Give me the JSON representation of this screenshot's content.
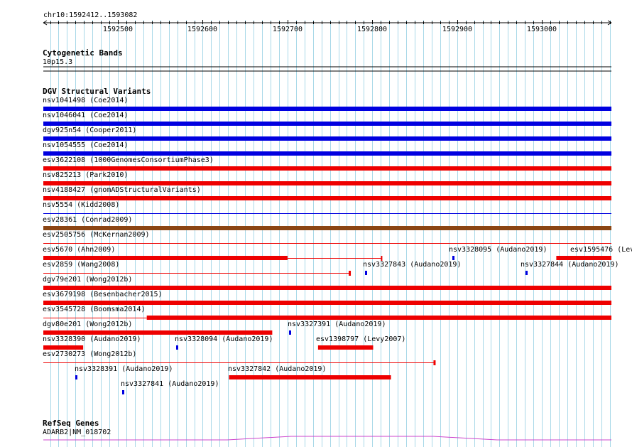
{
  "ruler": {
    "region": "chr10:1592412..1593082",
    "start": 1592412,
    "end": 1593082,
    "ticks": [
      "1592500",
      "1592600",
      "1592700",
      "1592800",
      "1592900",
      "1593000"
    ]
  },
  "tracks": {
    "cytogenetic": {
      "title": "Cytogenetic Bands",
      "band": "10p15.3"
    },
    "dgv": {
      "title": "DGV Structural Variants"
    },
    "refseq": {
      "title": "RefSeq Genes",
      "gene": "ADARB2|NM_018702"
    }
  },
  "colors": {
    "blue": "#0000e0",
    "red": "#ee0000",
    "brown": "#8b4513",
    "grid": "#a8d8e8",
    "gene": "#cc44cc"
  },
  "variants": [
    {
      "label": "nsv1041498 (Coe2014)",
      "start": 1592412,
      "end": 1593082,
      "color": "blue",
      "style": "thick"
    },
    {
      "label": "nsv1046041 (Coe2014)",
      "start": 1592412,
      "end": 1593082,
      "color": "blue",
      "style": "thick"
    },
    {
      "label": "dgv925n54 (Cooper2011)",
      "start": 1592412,
      "end": 1593082,
      "color": "blue",
      "style": "thick"
    },
    {
      "label": "nsv1054555 (Coe2014)",
      "start": 1592412,
      "end": 1593082,
      "color": "blue",
      "style": "thick"
    },
    {
      "label": "esv3622108 (1000GenomesConsortiumPhase3)",
      "start": 1592412,
      "end": 1593082,
      "color": "red",
      "style": "thick"
    },
    {
      "label": "nsv825213 (Park2010)",
      "start": 1592412,
      "end": 1593082,
      "color": "red",
      "style": "thick"
    },
    {
      "label": "nsv4188427 (gnomADStructuralVariants)",
      "start": 1592412,
      "end": 1593082,
      "color": "red",
      "style": "thick"
    },
    {
      "label": "nsv5554 (Kidd2008)",
      "start": 1592412,
      "end": 1593082,
      "color": "blue",
      "style": "thin"
    },
    {
      "label": "esv28361 (Conrad2009)",
      "start": 1592412,
      "end": 1593082,
      "color": "brown",
      "style": "thick"
    },
    {
      "label": "esv2505756 (McKernan2009)",
      "start": 1592412,
      "end": 1593082,
      "color": "red",
      "style": "thin"
    },
    {
      "label": "esv5670 (Ahn2009)",
      "start": 1592412,
      "end": 1592700,
      "color": "red",
      "style": "thick",
      "linkEnd": 1592811
    },
    {
      "label": "nsv3328095 (Audano2019)",
      "start": 1592894,
      "end": 1592896,
      "color": "blue",
      "style": "tick"
    },
    {
      "label": "esv1595476 (Lev",
      "start": 1593017,
      "end": 1593082,
      "color": "red",
      "style": "thick"
    },
    {
      "label": "esv2859 (Wang2008)",
      "start": 1592412,
      "end": 1592773,
      "color": "red",
      "style": "thin",
      "endCap": true
    },
    {
      "label": "nsv3327843 (Audano2019)",
      "start": 1592791,
      "end": 1592793,
      "color": "blue",
      "style": "tick"
    },
    {
      "label": "nsv3327844 (Audano2019)",
      "start": 1592981,
      "end": 1592983,
      "color": "blue",
      "style": "tick"
    },
    {
      "label": "dgv79e201 (Wong2012b)",
      "start": 1592412,
      "end": 1593082,
      "color": "red",
      "style": "thick"
    },
    {
      "label": "esv3679198 (Besenbacher2015)",
      "start": 1592412,
      "end": 1593082,
      "color": "red",
      "style": "thick"
    },
    {
      "label": "esv3545728 (Boomsma2014)",
      "start": 1592534,
      "end": 1593082,
      "color": "red",
      "style": "thick",
      "thinFromStart": true
    },
    {
      "label": "dgv80e201 (Wong2012b)",
      "start": 1592412,
      "end": 1592682,
      "color": "red",
      "style": "thick"
    },
    {
      "label": "nsv3327391 (Audano2019)",
      "start": 1592702,
      "end": 1592704,
      "color": "blue",
      "style": "tick"
    },
    {
      "label": "nsv3328390 (Audano2019)",
      "start": 1592412,
      "end": 1592459,
      "color": "red",
      "style": "thick"
    },
    {
      "label": "nsv3328094 (Audano2019)",
      "start": 1592569,
      "end": 1592571,
      "color": "blue",
      "style": "tick"
    },
    {
      "label": "esv1398797 (Levy2007)",
      "start": 1592736,
      "end": 1592801,
      "color": "red",
      "style": "thick"
    },
    {
      "label": "esv2730273 (Wong2012b)",
      "start": 1592412,
      "end": 1592873,
      "color": "red",
      "style": "thin",
      "endCap": true
    },
    {
      "label": "nsv3328391 (Audano2019)",
      "start": 1592450,
      "end": 1592452,
      "color": "blue",
      "style": "tick"
    },
    {
      "label": "nsv3327842 (Audano2019)",
      "start": 1592631,
      "end": 1592822,
      "color": "red",
      "style": "thick"
    },
    {
      "label": "nsv3327841 (Audano2019)",
      "start": 1592505,
      "end": 1592507,
      "color": "blue",
      "style": "tick"
    }
  ]
}
